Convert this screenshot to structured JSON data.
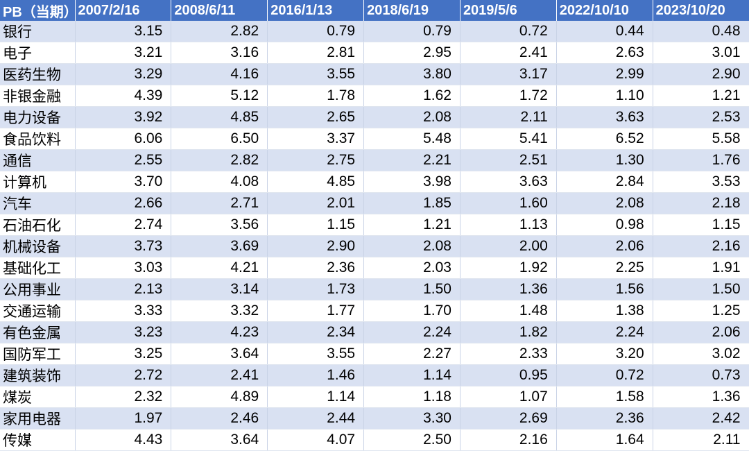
{
  "table": {
    "headers": [
      "PB（当期）",
      "2007/2/16",
      "2008/6/11",
      "2016/1/13",
      "2018/6/19",
      "2019/5/6",
      "2022/10/10",
      "2023/10/20"
    ],
    "rows": [
      {
        "name": "银行",
        "values": [
          "3.15",
          "2.82",
          "0.79",
          "0.79",
          "0.72",
          "0.44",
          "0.48"
        ]
      },
      {
        "name": "电子",
        "values": [
          "3.21",
          "3.16",
          "2.81",
          "2.95",
          "2.41",
          "2.63",
          "3.01"
        ]
      },
      {
        "name": "医药生物",
        "values": [
          "3.29",
          "4.16",
          "3.55",
          "3.80",
          "3.17",
          "2.99",
          "2.90"
        ]
      },
      {
        "name": "非银金融",
        "values": [
          "4.39",
          "5.12",
          "1.78",
          "1.62",
          "1.72",
          "1.10",
          "1.21"
        ]
      },
      {
        "name": "电力设备",
        "values": [
          "3.92",
          "4.85",
          "2.65",
          "2.08",
          "2.11",
          "3.63",
          "2.53"
        ]
      },
      {
        "name": "食品饮料",
        "values": [
          "6.06",
          "6.50",
          "3.37",
          "5.48",
          "5.41",
          "6.52",
          "5.58"
        ]
      },
      {
        "name": "通信",
        "values": [
          "2.55",
          "2.82",
          "2.75",
          "2.21",
          "2.51",
          "1.30",
          "1.76"
        ]
      },
      {
        "name": "计算机",
        "values": [
          "3.70",
          "4.08",
          "4.85",
          "3.98",
          "3.63",
          "2.84",
          "3.53"
        ]
      },
      {
        "name": "汽车",
        "values": [
          "2.66",
          "2.71",
          "2.01",
          "1.85",
          "1.60",
          "2.08",
          "2.18"
        ]
      },
      {
        "name": "石油石化",
        "values": [
          "2.74",
          "3.56",
          "1.15",
          "1.21",
          "1.13",
          "0.98",
          "1.15"
        ]
      },
      {
        "name": "机械设备",
        "values": [
          "3.73",
          "3.69",
          "2.90",
          "2.08",
          "2.00",
          "2.06",
          "2.16"
        ]
      },
      {
        "name": "基础化工",
        "values": [
          "3.03",
          "4.21",
          "2.36",
          "2.03",
          "1.92",
          "2.25",
          "1.91"
        ]
      },
      {
        "name": "公用事业",
        "values": [
          "2.13",
          "3.14",
          "1.73",
          "1.50",
          "1.36",
          "1.56",
          "1.50"
        ]
      },
      {
        "name": "交通运输",
        "values": [
          "3.33",
          "3.32",
          "1.77",
          "1.70",
          "1.48",
          "1.38",
          "1.25"
        ]
      },
      {
        "name": "有色金属",
        "values": [
          "3.23",
          "4.23",
          "2.34",
          "2.24",
          "1.82",
          "2.24",
          "2.06"
        ]
      },
      {
        "name": "国防军工",
        "values": [
          "3.25",
          "3.64",
          "3.55",
          "2.27",
          "2.33",
          "3.20",
          "3.02"
        ]
      },
      {
        "name": "建筑装饰",
        "values": [
          "2.72",
          "2.41",
          "1.46",
          "1.14",
          "0.95",
          "0.72",
          "0.73"
        ]
      },
      {
        "name": "煤炭",
        "values": [
          "2.32",
          "4.89",
          "1.14",
          "1.18",
          "1.07",
          "1.58",
          "1.36"
        ]
      },
      {
        "name": "家用电器",
        "values": [
          "1.97",
          "2.46",
          "2.44",
          "3.30",
          "2.69",
          "2.36",
          "2.42"
        ]
      },
      {
        "name": "传媒",
        "values": [
          "4.43",
          "3.64",
          "4.07",
          "2.50",
          "2.16",
          "1.64",
          "2.11"
        ]
      }
    ]
  },
  "colors": {
    "header_bg": "#4472c4",
    "band_bg": "#d9e1f2",
    "plain_bg": "#ffffff"
  }
}
